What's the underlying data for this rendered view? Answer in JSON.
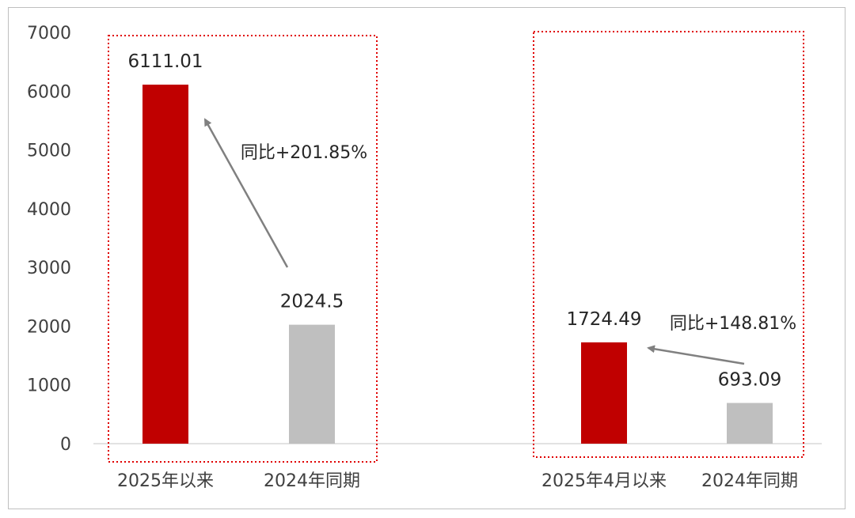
{
  "chart_data": {
    "type": "bar",
    "ylim": [
      0,
      7000
    ],
    "yticks": [
      0,
      1000,
      2000,
      3000,
      4000,
      5000,
      6000,
      7000
    ],
    "categories": [
      "2025年以来",
      "2024年同期",
      "2025年4月以来",
      "2024年同期"
    ],
    "values": [
      6111.01,
      2024.5,
      1724.49,
      693.09
    ],
    "value_labels": [
      "6111.01",
      "2024.5",
      "1724.49",
      "693.09"
    ],
    "colors": [
      "#c00000",
      "#bfbfbf",
      "#c00000",
      "#bfbfbf"
    ],
    "annotations": [
      "同比+201.85%",
      "同比+148.81%"
    ],
    "grid": false,
    "legend": "none"
  }
}
